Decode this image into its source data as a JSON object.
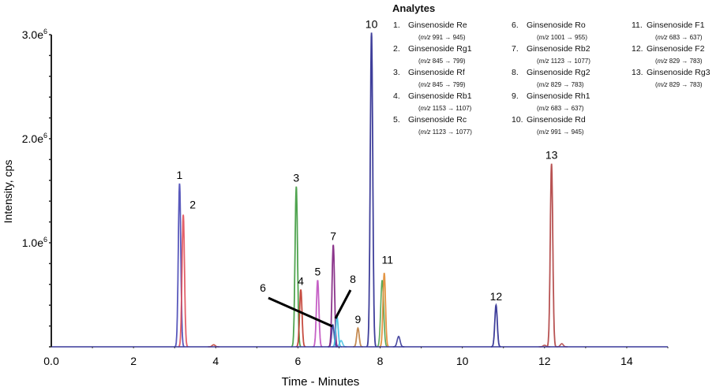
{
  "chart_data": {
    "type": "line",
    "title": "",
    "xlabel": "Time - Minutes",
    "ylabel": "Intensity, cps",
    "xlim": [
      0,
      15
    ],
    "ylim": [
      0,
      3000000
    ],
    "x_ticks": [
      "0.0",
      "2",
      "4",
      "6",
      "8",
      "10",
      "12",
      "14"
    ],
    "x_tick_values": [
      0,
      2,
      4,
      6,
      8,
      10,
      12,
      14
    ],
    "y_ticks": [
      {
        "value": 1000000,
        "base": "1.0e",
        "exp": "6"
      },
      {
        "value": 2000000,
        "base": "2.0e",
        "exp": "6"
      },
      {
        "value": 3000000,
        "base": "3.0e",
        "exp": "6"
      }
    ],
    "grid": false,
    "legend_placement": "top-right",
    "peaks": [
      {
        "label": "1",
        "time": 3.12,
        "intensity": 1570000,
        "color": "#4747b5"
      },
      {
        "label": "2",
        "time": 3.21,
        "intensity": 1270000,
        "color": "#e0505a"
      },
      {
        "label": "3",
        "time": 5.96,
        "intensity": 1540000,
        "color": "#3d9a3d"
      },
      {
        "label": "4",
        "time": 6.07,
        "intensity": 550000,
        "color": "#c0392b"
      },
      {
        "label": "5",
        "time": 6.48,
        "intensity": 640000,
        "color": "#c050c0"
      },
      {
        "label": "6",
        "time": 6.85,
        "intensity": 210000,
        "color": "#3040a0"
      },
      {
        "label": "7",
        "time": 6.86,
        "intensity": 980000,
        "color": "#802080"
      },
      {
        "label": "8",
        "time": 6.95,
        "intensity": 290000,
        "color": "#40c0e0"
      },
      {
        "label": "9",
        "time": 7.46,
        "intensity": 180000,
        "color": "#c08040"
      },
      {
        "label": "10",
        "time": 7.79,
        "intensity": 3020000,
        "color": "#2a2a90"
      },
      {
        "label": "11",
        "time": 8.1,
        "intensity": 710000,
        "color": "#e08a30"
      },
      {
        "label": "12",
        "time": 10.82,
        "intensity": 400000,
        "color": "#2a2a90"
      },
      {
        "label": "13",
        "time": 12.17,
        "intensity": 1760000,
        "color": "#b04040"
      }
    ],
    "minor_peaks": [
      {
        "time": 8.05,
        "intensity": 640000,
        "color": "#3d9a3d"
      },
      {
        "time": 8.45,
        "intensity": 100000,
        "color": "#2a2a90"
      },
      {
        "time": 7.05,
        "intensity": 60000,
        "color": "#40c0e0"
      },
      {
        "time": 3.95,
        "intensity": 20000,
        "color": "#c0392b"
      },
      {
        "time": 12.42,
        "intensity": 30000,
        "color": "#b04040"
      },
      {
        "time": 12.0,
        "intensity": 15000,
        "color": "#b04040"
      }
    ],
    "baseline_color": "#3a3a9a"
  },
  "legend": {
    "title": "Analytes",
    "items": [
      {
        "num": "1.",
        "name": "Ginsenoside Re",
        "mz_prefix": "m/z",
        "mz": "991 → 945"
      },
      {
        "num": "2.",
        "name": "Ginsenoside Rg1",
        "mz_prefix": "m/z",
        "mz": "845 → 799"
      },
      {
        "num": "3.",
        "name": "Ginsenoside Rf",
        "mz_prefix": "m/z",
        "mz": "845 → 799"
      },
      {
        "num": "4.",
        "name": "Ginsenoside Rb1",
        "mz_prefix": "m/z",
        "mz": "1153 → 1107"
      },
      {
        "num": "5.",
        "name": "Ginsenoside Rc",
        "mz_prefix": "m/z",
        "mz": "1123 → 1077"
      },
      {
        "num": "6.",
        "name": "Ginsenoside Ro",
        "mz_prefix": "m/z",
        "mz": "1001 → 955"
      },
      {
        "num": "7.",
        "name": "Ginsenoside Rb2",
        "mz_prefix": "m/z",
        "mz": "1123 → 1077"
      },
      {
        "num": "8.",
        "name": "Ginsenoside Rg2",
        "mz_prefix": "m/z",
        "mz": "829 → 783"
      },
      {
        "num": "9.",
        "name": "Ginsenoside Rh1",
        "mz_prefix": "m/z",
        "mz": "683 → 637"
      },
      {
        "num": "10.",
        "name": "Ginsenoside Rd",
        "mz_prefix": "m/z",
        "mz": "991 → 945"
      },
      {
        "num": "11.",
        "name": "Ginsenoside F1",
        "mz_prefix": "m/z",
        "mz": "683 → 637"
      },
      {
        "num": "12.",
        "name": "Ginsenoside F2",
        "mz_prefix": "m/z",
        "mz": "829 → 783"
      },
      {
        "num": "13.",
        "name": "Ginsenoside Rg3",
        "mz_prefix": "m/z",
        "mz": "829 → 783"
      }
    ]
  }
}
